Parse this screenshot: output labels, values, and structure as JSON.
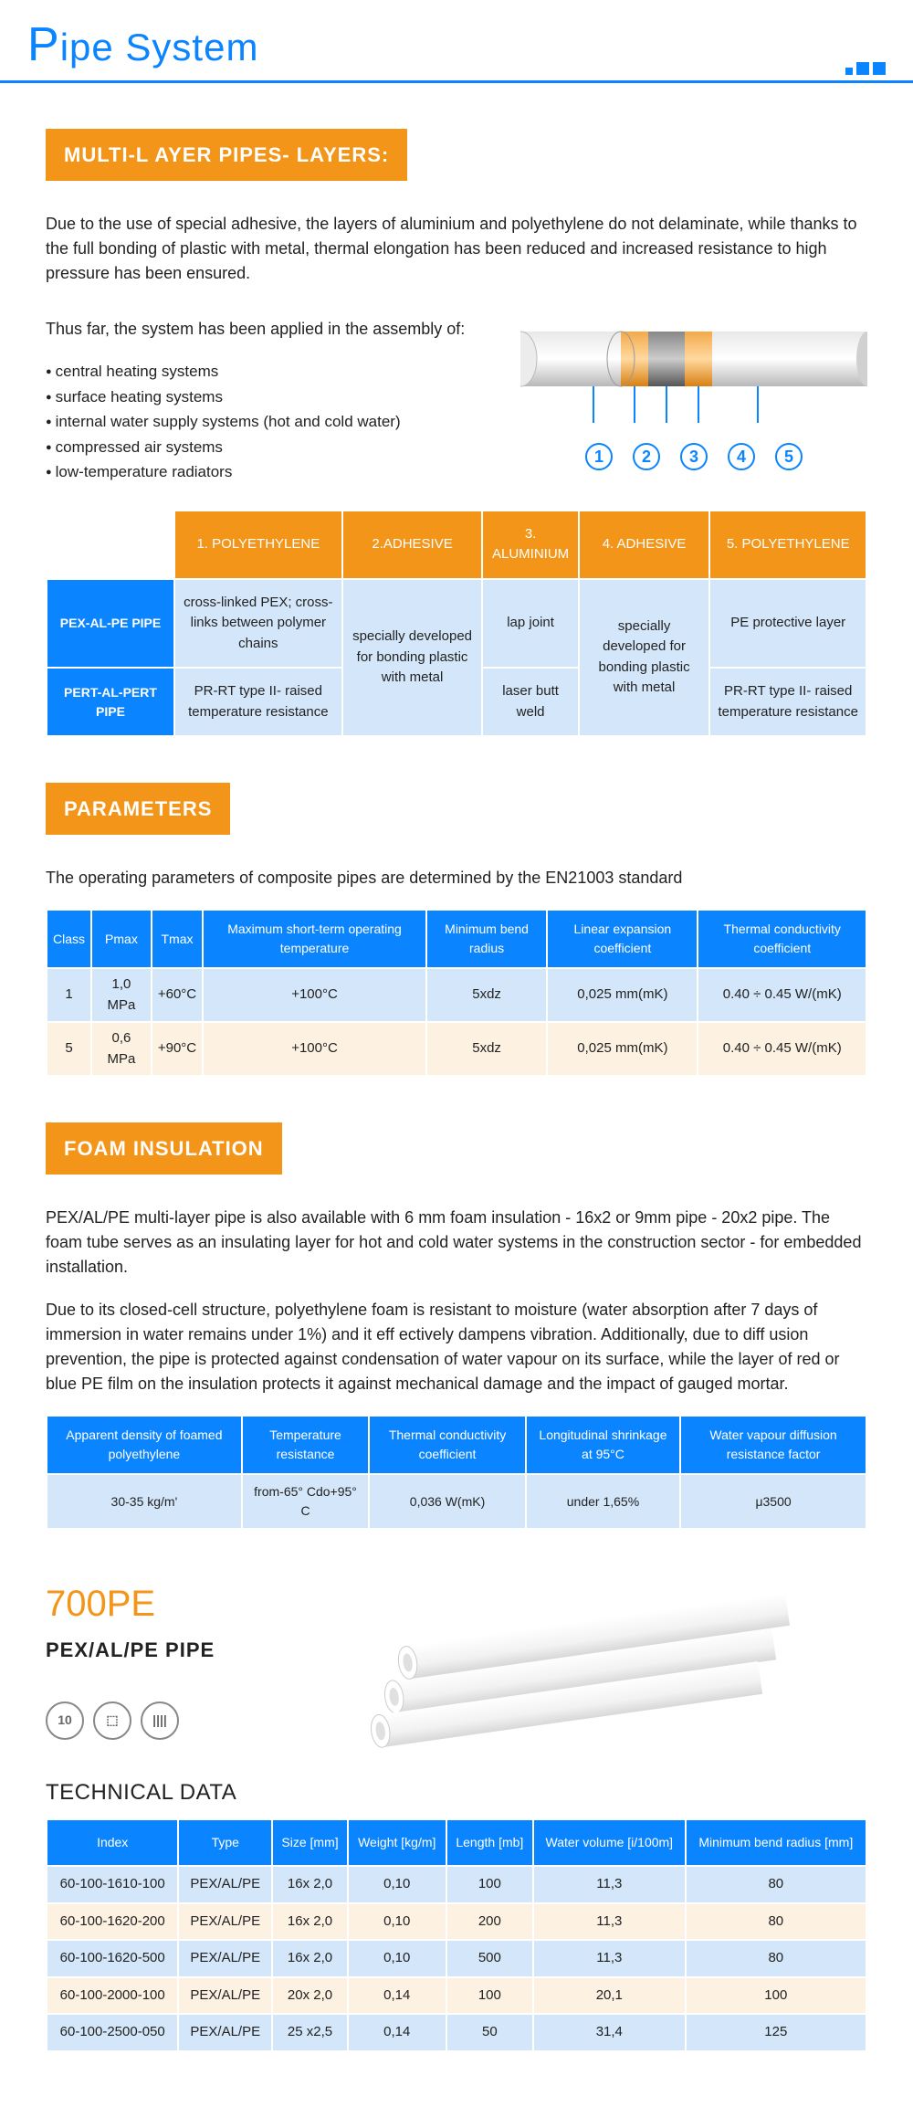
{
  "header": {
    "title_big": "P",
    "title_rest": "ipe System"
  },
  "section_layers": {
    "heading": "MULTI-L AYER PIPES- LAYERS:",
    "para1": "Due to the use of special adhesive, the layers of aluminium and polyethylene do not delaminate, while thanks to the full bonding of plastic with metal, thermal elongation has been reduced and increased resistance to high pressure has been ensured.",
    "para2": "Thus far, the system has been applied in the assembly of:",
    "bullets": [
      "central heating systems",
      "surface heating systems",
      "internal water supply systems (hot and cold water)",
      "compressed air systems",
      "low-temperature radiators"
    ],
    "diagram_nums": [
      "1",
      "2",
      "3",
      "4",
      "5"
    ],
    "table": {
      "head": [
        "1. POLYETHYLENE",
        "2.ADHESIVE",
        "3. ALUMINIUM",
        "4. ADHESIVE",
        "5. POLYETHYLENE"
      ],
      "row1_label": "PEX-AL-PE PIPE",
      "row2_label": "PERT-AL-PERT PIPE",
      "r1c1": "cross-linked PEX; cross-links between polymer chains",
      "r2c1": "PR-RT type II- raised temperature resistance",
      "c2_merged": "specially developed for bonding plastic with metal",
      "r1c3": "lap joint",
      "r2c3": "laser butt weld",
      "c4_merged": "specially developed for bonding plastic with metal",
      "r1c5": "PE protective layer",
      "r2c5": "PR-RT type II- raised temperature resistance"
    }
  },
  "section_params": {
    "heading": "PARAMETERS",
    "intro": "The operating parameters of composite pipes are determined by the EN21003 standard",
    "head": [
      "Class",
      "Pmax",
      "Tmax",
      "Maximum short-term operating temperature",
      "Minimum bend radius",
      "Linear expansion coefficient",
      "Thermal conductivity coefficient"
    ],
    "rows": [
      [
        "1",
        "1,0 MPa",
        "+60°C",
        "+100°C",
        "5xdz",
        "0,025 mm(mK)",
        "0.40 ÷ 0.45 W/(mK)"
      ],
      [
        "5",
        "0,6 MPa",
        "+90°C",
        "+100°C",
        "5xdz",
        "0,025 mm(mK)",
        "0.40 ÷ 0.45 W/(mK)"
      ]
    ]
  },
  "section_foam": {
    "heading": "FOAM INSULATION",
    "p1": "PEX/AL/PE multi-layer pipe is also available with 6 mm foam insulation - 16x2 or 9mm pipe - 20x2 pipe. The foam tube serves as an insulating layer for hot and cold water systems in the construction sector - for embedded installation.",
    "p2": "Due to its closed-cell structure, polyethylene foam is resistant to moisture (water absorption after 7 days of immersion in water remains under 1%) and it eff ectively dampens vibration. Additionally, due to diff usion prevention, the pipe is protected against condensation of water vapour on its surface, while the layer of red or blue PE film on the insulation protects it against mechanical damage and the impact of gauged mortar.",
    "head": [
      "Apparent density of foamed polyethylene",
      "Temperature resistance",
      "Thermal conductivity coefficient",
      "Longitudinal shrinkage at 95°C",
      "Water vapour diffusion resistance factor"
    ],
    "row": [
      "30-35 kg/m'",
      "from-65° Cdo+95° C",
      "0,036 W(mK)",
      "under 1,65%",
      "μ3500"
    ]
  },
  "product": {
    "title": "700PE",
    "subtitle": "PEX/AL/PE PIPE",
    "icons": [
      "10",
      "⬚",
      "||||"
    ]
  },
  "tech": {
    "heading": "TECHNICAL DATA",
    "head": [
      "Index",
      "Type",
      "Size [mm]",
      "Weight [kg/m]",
      "Length [mb]",
      "Water volume [i/100m]",
      "Minimum bend radius [mm]"
    ],
    "rows": [
      [
        "60-100-1610-100",
        "PEX/AL/PE",
        "16x 2,0",
        "0,10",
        "100",
        "11,3",
        "80"
      ],
      [
        "60-100-1620-200",
        "PEX/AL/PE",
        "16x 2,0",
        "0,10",
        "200",
        "11,3",
        "80"
      ],
      [
        "60-100-1620-500",
        "PEX/AL/PE",
        "16x 2,0",
        "0,10",
        "500",
        "11,3",
        "80"
      ],
      [
        "60-100-2000-100",
        "PEX/AL/PE",
        "20x 2,0",
        "0,14",
        "100",
        "20,1",
        "100"
      ],
      [
        "60-100-2500-050",
        "PEX/AL/PE",
        "25 x2,5",
        "0,14",
        "50",
        "31,4",
        "125"
      ]
    ]
  },
  "colors": {
    "blue": "#0a84ff",
    "orange": "#f39518",
    "lightblue": "#d4e6f9",
    "cream": "#fdf1e2"
  }
}
